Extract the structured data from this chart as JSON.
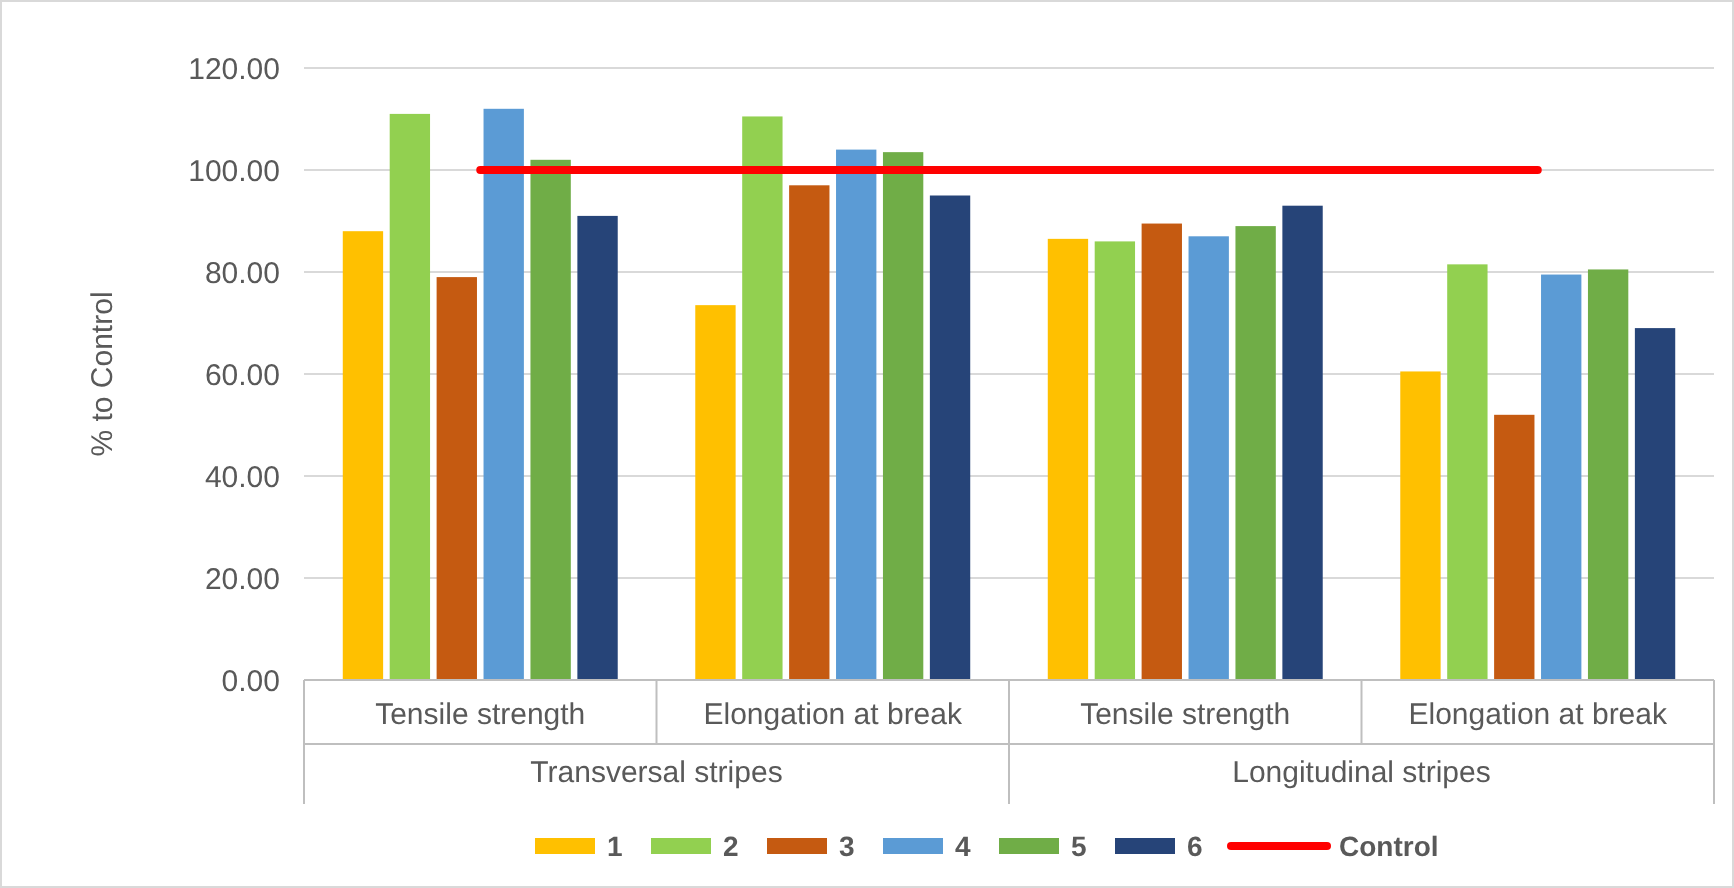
{
  "chart_data": {
    "type": "bar",
    "ylabel": "% to Control",
    "categories": [
      "Tensile strength",
      "Elongation at break",
      "Tensile strength",
      "Elongation at break"
    ],
    "annotations": [
      "Transversal stripes",
      "Longitudinal stripes"
    ],
    "series": [
      {
        "name": "1",
        "color": "#ffc000",
        "values": [
          88,
          73.5,
          86.5,
          60.5
        ]
      },
      {
        "name": "2",
        "color": "#92d050",
        "values": [
          111,
          110.5,
          86,
          81.5
        ]
      },
      {
        "name": "3",
        "color": "#c55a11",
        "values": [
          79,
          97,
          89.5,
          52
        ]
      },
      {
        "name": "4",
        "color": "#5b9bd5",
        "values": [
          112,
          104,
          87,
          79.5
        ]
      },
      {
        "name": "5",
        "color": "#70ad47",
        "values": [
          102,
          103.5,
          89,
          80.5
        ]
      },
      {
        "name": "6",
        "color": "#264478",
        "values": [
          91,
          95,
          93,
          69
        ]
      },
      {
        "name": "Control",
        "type": "line",
        "color": "#ff0000",
        "values": [
          100,
          100,
          100,
          100
        ]
      }
    ],
    "ylim": [
      0,
      120
    ],
    "yticks": [
      {
        "value": 0,
        "label": "0.00"
      },
      {
        "value": 20,
        "label": "20.00"
      },
      {
        "value": 40,
        "label": "40.00"
      },
      {
        "value": 60,
        "label": "60.00"
      },
      {
        "value": 80,
        "label": "80.00"
      },
      {
        "value": 100,
        "label": "100.00"
      },
      {
        "value": 120,
        "label": "120.00"
      }
    ],
    "grid": "y",
    "legend": "bottom"
  }
}
